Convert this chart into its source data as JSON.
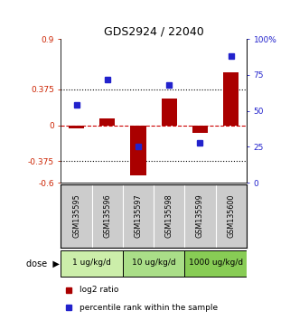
{
  "title": "GDS2924 / 22040",
  "samples": [
    "GSM135595",
    "GSM135596",
    "GSM135597",
    "GSM135598",
    "GSM135599",
    "GSM135600"
  ],
  "log2_ratio": [
    -0.03,
    0.07,
    -0.52,
    0.28,
    -0.08,
    0.55
  ],
  "percentile_rank": [
    54,
    72,
    25,
    68,
    28,
    88
  ],
  "doses": [
    {
      "label": "1 ug/kg/d",
      "samples": [
        0,
        1
      ],
      "color": "#cceeaa"
    },
    {
      "label": "10 ug/kg/d",
      "samples": [
        2,
        3
      ],
      "color": "#aade88"
    },
    {
      "label": "1000 ug/kg/d",
      "samples": [
        4,
        5
      ],
      "color": "#88cc55"
    }
  ],
  "ylim_left": [
    -0.6,
    0.9
  ],
  "ylim_right": [
    0,
    100
  ],
  "yticks_left": [
    -0.6,
    -0.375,
    0,
    0.375,
    0.9
  ],
  "ytick_left_labels": [
    "-0.6",
    "-0.375",
    "0",
    "0.375",
    "0.9"
  ],
  "yticks_right": [
    0,
    25,
    50,
    75,
    100
  ],
  "ytick_right_labels": [
    "0",
    "25",
    "50",
    "75",
    "100%"
  ],
  "hlines": [
    0.375,
    -0.375
  ],
  "bar_color": "#aa0000",
  "dot_color": "#2222cc",
  "background_color": "#ffffff",
  "sample_bg_color": "#cccccc",
  "dose_colors": [
    "#cceeaa",
    "#aade88",
    "#88cc55"
  ],
  "bar_width": 0.5
}
